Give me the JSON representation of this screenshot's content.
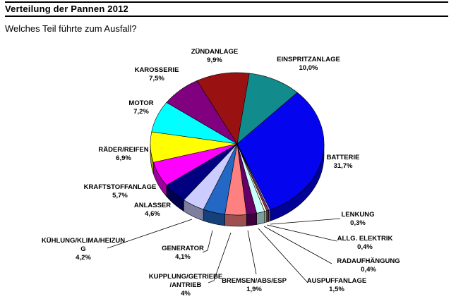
{
  "page": {
    "title": "Verteilung der Pannen 2012",
    "question": "Welches Teil führte zum Ausfall?"
  },
  "chart_data": {
    "type": "pie",
    "title": "Verteilung der Pannen 2012",
    "style": "3d-pie",
    "start": "top",
    "direction": "clockwise",
    "slices": [
      {
        "label": "EINSPRITZANLAGE",
        "value": 10.0,
        "pct": "10,0%",
        "color": "#118B8B"
      },
      {
        "label": "BATTERIE",
        "value": 31.7,
        "pct": "31,7%",
        "color": "#0404EE"
      },
      {
        "label": "LENKUNG",
        "value": 0.3,
        "pct": "0,3%",
        "color": "#9999FF"
      },
      {
        "label": "ALLG. ELEKTRIK",
        "value": 0.4,
        "pct": "0,4%",
        "color": "#993366"
      },
      {
        "label": "RADAUFHÄNGUNG",
        "value": 0.4,
        "pct": "0,4%",
        "color": "#FFFFCC"
      },
      {
        "label": "AUSPUFFANLAGE",
        "value": 1.5,
        "pct": "1,5%",
        "color": "#CCFFFF"
      },
      {
        "label": "BREMSEN/ABS/ESP",
        "value": 1.9,
        "pct": "1,9%",
        "color": "#660066"
      },
      {
        "label": "KUPPLUNG/GETRIEBE/ANTRIEB",
        "label_lines": [
          "KUPPLUNG/GETRIEBE",
          "/ANTRIEB"
        ],
        "value": 4.0,
        "pct": "4%",
        "color": "#FF8080"
      },
      {
        "label": "GENERATOR",
        "value": 4.1,
        "pct": "4,1%",
        "color": "#2268C4"
      },
      {
        "label": "KÜHLUNG/KLIMA/HEIZUNG",
        "label_lines": [
          "KÜHLUNG/KLIMA/HEIZUN",
          "G"
        ],
        "value": 4.2,
        "pct": "4,2%",
        "color": "#CCCCFF"
      },
      {
        "label": "ANLASSER",
        "value": 4.6,
        "pct": "4,6%",
        "color": "#000080"
      },
      {
        "label": "KRAFTSTOFFANLAGE",
        "value": 5.7,
        "pct": "5,7%",
        "color": "#FF00FF"
      },
      {
        "label": "RÄDER/REIFEN",
        "value": 6.9,
        "pct": "6,9%",
        "color": "#FFFF00"
      },
      {
        "label": "MOTOR",
        "value": 7.2,
        "pct": "7,2%",
        "color": "#00FFFF"
      },
      {
        "label": "KAROSSERIE",
        "value": 7.5,
        "pct": "7,5%",
        "color": "#800080"
      },
      {
        "label": "ZÜNDANLAGE",
        "value": 9.9,
        "pct": "9,9%",
        "color": "#991111"
      }
    ]
  }
}
